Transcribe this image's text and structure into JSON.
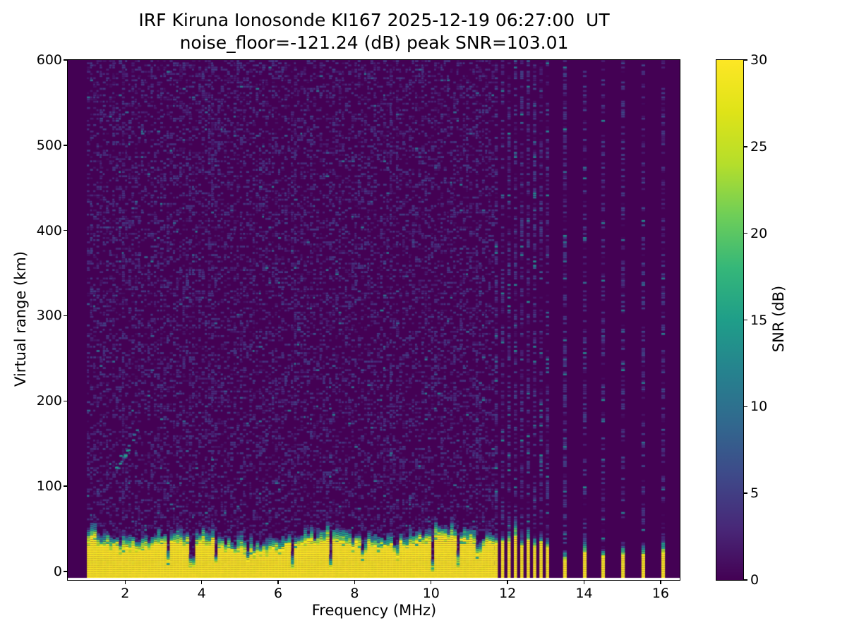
{
  "chart_data": {
    "type": "heatmap",
    "title": "IRF Kiruna Ionosonde KI167 2025-12-19 06:27:00  UT",
    "subtitle": "noise_floor=-121.24 (dB) peak SNR=103.01",
    "station": "IRF Kiruna Ionosonde KI167",
    "timestamp_ut": "2025-12-19 06:27:00",
    "noise_floor_db": -121.24,
    "peak_snr_db": 103.01,
    "xlabel": "Frequency (MHz)",
    "ylabel": "Virtual range (km)",
    "colorbar_label": "SNR (dB)",
    "xlim": [
      0.5,
      16.5
    ],
    "ylim": [
      -10,
      600
    ],
    "clim": [
      0,
      30
    ],
    "x_ticks": [
      2,
      4,
      6,
      8,
      10,
      12,
      14,
      16
    ],
    "y_ticks": [
      0,
      100,
      200,
      300,
      400,
      500,
      600
    ],
    "colorbar_ticks": [
      0,
      5,
      10,
      15,
      20,
      25,
      30
    ],
    "colormap": "viridis",
    "colormap_stops": [
      "#440154",
      "#482878",
      "#3e4989",
      "#31688e",
      "#26828e",
      "#1f9e89",
      "#35b779",
      "#6ece58",
      "#b5de2b",
      "#dfe318",
      "#fde725"
    ],
    "grid": false,
    "legend": "colorbar-right",
    "render": {
      "render_seed": 11,
      "no_data_below_mhz": 0.97,
      "sweep": {
        "f_start": 1.0,
        "f_continuous_end": 11.62,
        "f_max": 16.05
      },
      "echo_band": {
        "top_km_typ": 32,
        "top_km_min": 18,
        "top_km_max": 46,
        "snr_db": 30,
        "transition_km": 14
      },
      "notches_mhz": [
        3.06,
        3.7,
        4.32,
        5.15,
        6.33,
        7.35,
        8.2,
        9.05,
        10.0,
        10.65,
        11.2
      ],
      "deep_notches_mhz": [
        3.7,
        6.33,
        7.35,
        10.0
      ],
      "stripes_dense": {
        "f_start": 11.66,
        "spacing_mhz": 0.1675,
        "count": 9,
        "top_km_typ": 34
      },
      "stripes_sparse_mhz": [
        13.45,
        13.97,
        14.45,
        14.97,
        15.5,
        16.02
      ],
      "stripe_short_mhz": 13.45,
      "sporadic_echo": {
        "f_range": [
          1.7,
          2.3
        ],
        "km_range": [
          118,
          160
        ],
        "snr_db_range": [
          7,
          16
        ]
      },
      "noise_streak_freqs_mhz": [
        1.9,
        4.2,
        6.4,
        8.9,
        11.15
      ],
      "noise": {
        "fill_prob": 0.4,
        "snr_db_range": [
          0.4,
          5.0
        ],
        "bright_prob": 0.011,
        "bright_snr_db_range": [
          5,
          11
        ]
      }
    }
  }
}
